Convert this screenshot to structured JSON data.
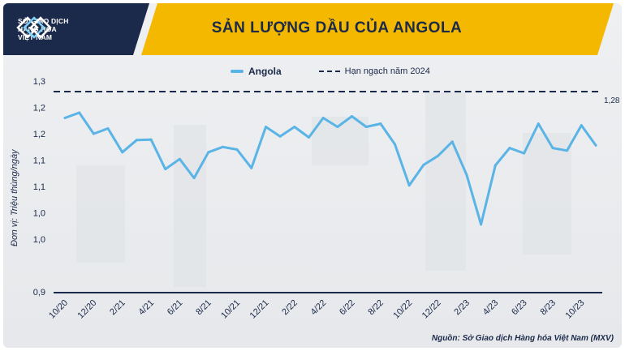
{
  "header": {
    "logo_lines": [
      "SỞ GIAO DỊCH",
      "HÀNG HÓA",
      "VIỆT NAM"
    ],
    "title": "SẢN LƯỢNG DẦU CỦA ANGOLA",
    "accent_color": "#f5b800",
    "dark_color": "#1b2a4a"
  },
  "legend": {
    "series_label": "Angola",
    "quota_label": "Hạn ngạch năm 2024"
  },
  "ylabel": "Đơn vị: Triệu thùng/ngày",
  "source": "Nguồn: Sở Giao dịch Hàng hóa Việt Nam (MXV)",
  "chart_data": {
    "type": "line",
    "title": "SẢN LƯỢNG DẦU CỦA ANGOLA",
    "ylabel": "Đơn vị: Triệu thùng/ngày",
    "ylim": [
      0.9,
      1.3
    ],
    "y_ticks": [
      0.9,
      1.0,
      1.05,
      1.1,
      1.15,
      1.2,
      1.25,
      1.3
    ],
    "y_tick_labels": [
      "0,9",
      "1,0",
      "1,0",
      "1,1",
      "1,1",
      "1,2",
      "1,2",
      "1,3"
    ],
    "x_tick_labels": [
      "10/20",
      "12/20",
      "2/21",
      "4/21",
      "6/21",
      "8/21",
      "10/21",
      "12/21",
      "2/22",
      "4/22",
      "6/22",
      "8/22",
      "10/22",
      "12/22",
      "2/23",
      "4/23",
      "6/23",
      "8/23",
      "10/23"
    ],
    "series": [
      {
        "name": "Angola",
        "color": "#5ab4e5",
        "x": [
          "10/20",
          "11/20",
          "12/20",
          "1/21",
          "2/21",
          "3/21",
          "4/21",
          "5/21",
          "6/21",
          "7/21",
          "8/21",
          "9/21",
          "10/21",
          "11/21",
          "12/21",
          "1/22",
          "2/22",
          "3/22",
          "4/22",
          "5/22",
          "6/22",
          "7/22",
          "8/22",
          "9/22",
          "10/22",
          "11/22",
          "12/22",
          "1/23",
          "2/23",
          "3/23",
          "4/23",
          "5/23",
          "6/23",
          "7/23",
          "8/23",
          "9/23",
          "10/23",
          "11/23"
        ],
        "values": [
          1.23,
          1.24,
          1.2,
          1.21,
          1.165,
          1.188,
          1.189,
          1.133,
          1.152,
          1.116,
          1.165,
          1.175,
          1.17,
          1.135,
          1.213,
          1.195,
          1.213,
          1.193,
          1.23,
          1.213,
          1.233,
          1.213,
          1.219,
          1.18,
          1.102,
          1.141,
          1.158,
          1.185,
          1.122,
          1.028,
          1.14,
          1.173,
          1.163,
          1.219,
          1.173,
          1.168,
          1.216,
          1.178
        ]
      }
    ],
    "reference_line": {
      "name": "Hạn ngạch năm 2024",
      "value": 1.28,
      "label": "1,28",
      "color": "#1b2a4a"
    },
    "grid": false,
    "legend_position": "top-center"
  }
}
